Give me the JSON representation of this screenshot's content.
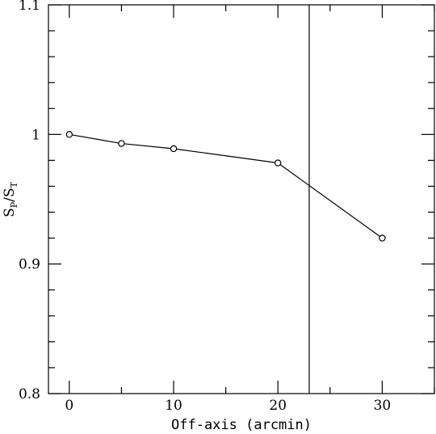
{
  "chart_data": {
    "type": "line",
    "title": "",
    "xlabel": "Off-axis (arcmin)",
    "ylabel": {
      "main_1": "S",
      "sub_1": "P",
      "slash": "/",
      "main_2": "S",
      "sub_2": "T"
    },
    "xlim": [
      -2,
      35
    ],
    "ylim": [
      0.8,
      1.1
    ],
    "x_ticks_major": [
      0,
      10,
      20,
      30
    ],
    "x_tick_labels": [
      "0",
      "10",
      "20",
      "30"
    ],
    "y_ticks_major": [
      0.8,
      0.9,
      1.0,
      1.1
    ],
    "y_tick_labels": [
      "0.8",
      "0.9",
      "1",
      "1.1"
    ],
    "series": [
      {
        "x": [
          0,
          5,
          10,
          20,
          30
        ],
        "values": [
          1.0,
          0.993,
          0.989,
          0.978,
          0.92
        ],
        "marker": "circle",
        "color": "#000000"
      }
    ],
    "vline_x": 23,
    "grid": false,
    "legend": "none"
  }
}
